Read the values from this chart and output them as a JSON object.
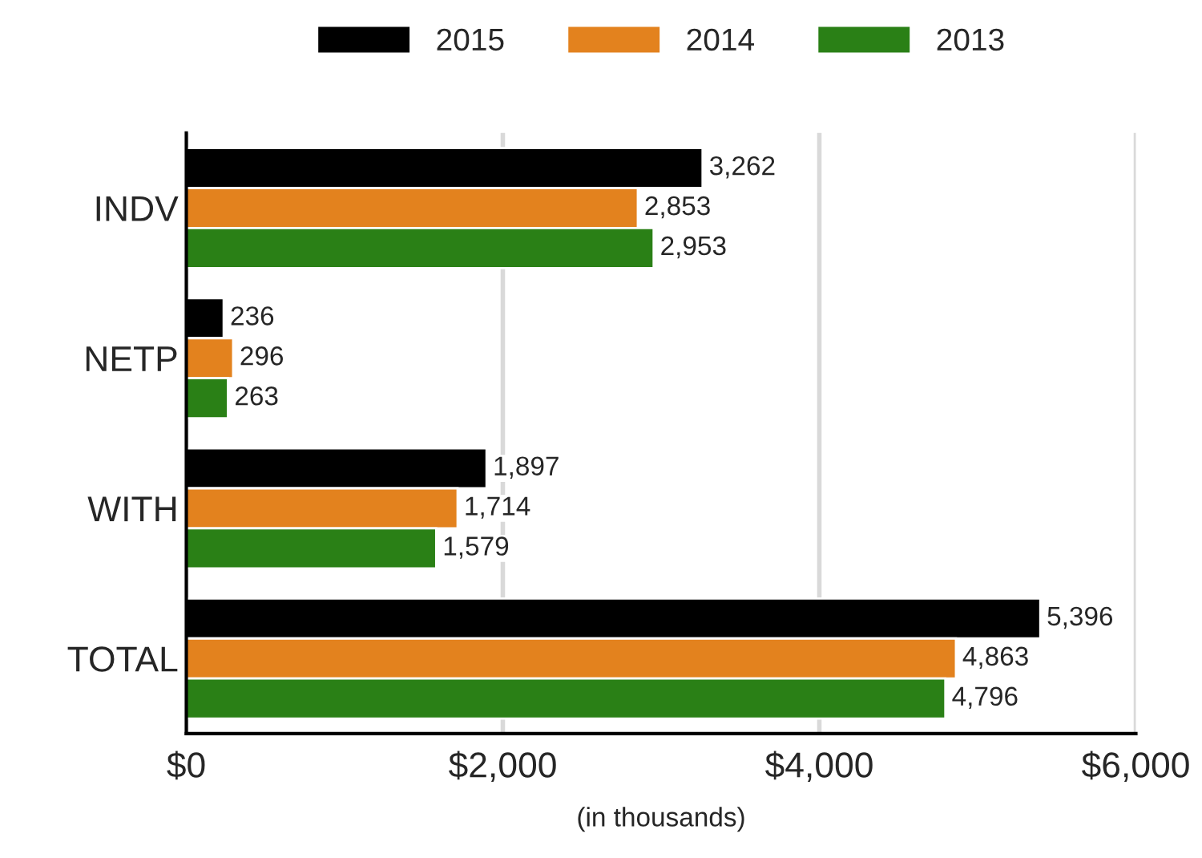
{
  "chart_data": {
    "type": "bar",
    "orientation": "horizontal",
    "categories": [
      "INDV",
      "NETP",
      "WITH",
      "TOTAL"
    ],
    "series": [
      {
        "name": "2015",
        "color": "#000000",
        "values": [
          3262,
          236,
          1897,
          5396
        ],
        "value_labels": [
          "3,262",
          "236",
          "1,897",
          "5,396"
        ]
      },
      {
        "name": "2014",
        "color": "#e3821e",
        "values": [
          2853,
          296,
          1714,
          4863
        ],
        "value_labels": [
          "2,853",
          "296",
          "1,714",
          "4,863"
        ]
      },
      {
        "name": "2013",
        "color": "#2a8016",
        "values": [
          2953,
          263,
          1579,
          4796
        ],
        "value_labels": [
          "2,953",
          "263",
          "1,579",
          "4,796"
        ]
      }
    ],
    "xlabel": "(in thousands)",
    "xlim": [
      0,
      6000
    ],
    "xticks": [
      {
        "value": 0,
        "label": "$0"
      },
      {
        "value": 2000,
        "label": "$2,000"
      },
      {
        "value": 4000,
        "label": "$4,000"
      },
      {
        "value": 6000,
        "label": "$6,000"
      }
    ],
    "grid": "x",
    "legend": "top"
  }
}
